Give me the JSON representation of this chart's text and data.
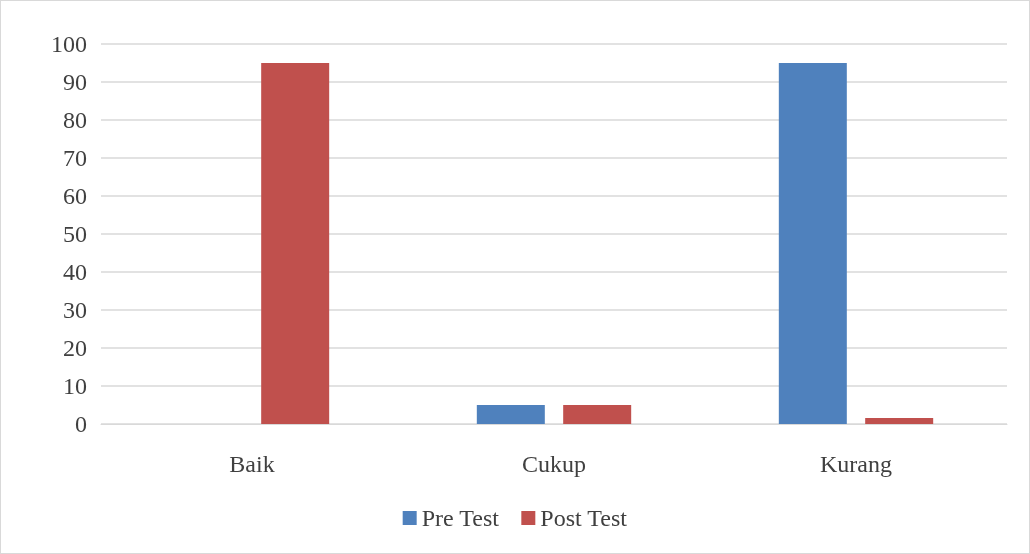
{
  "chart_data": {
    "type": "bar",
    "categories": [
      "Baik",
      "Cukup",
      "Kurang"
    ],
    "series": [
      {
        "name": "Pre Test",
        "color": "#4f81bd",
        "values": [
          0,
          5,
          95
        ]
      },
      {
        "name": "Post Test",
        "color": "#c0504d",
        "values": [
          95,
          5,
          1.6
        ]
      }
    ],
    "ylim": [
      0,
      100
    ],
    "yticks": [
      0,
      10,
      20,
      30,
      40,
      50,
      60,
      70,
      80,
      90,
      100
    ],
    "grid": "y",
    "legend": "bottom"
  }
}
